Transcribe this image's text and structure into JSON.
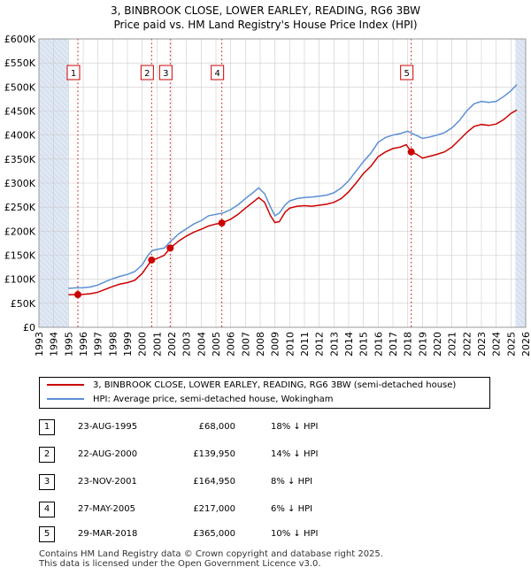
{
  "title_line1": "3, BINBROOK CLOSE, LOWER EARLEY, READING, RG6 3BW",
  "title_line2": "Price paid vs. HM Land Registry's House Price Index (HPI)",
  "colors": {
    "property": "#cc0000",
    "hpi": "#5b8fd4",
    "shade": "#dde6f3",
    "marker_line": "#cc0000"
  },
  "legend": {
    "property_label": "3, BINBROOK CLOSE, LOWER EARLEY, READING, RG6 3BW (semi-detached house)",
    "hpi_label": "HPI: Average price, semi-detached house, Wokingham"
  },
  "transactions": [
    {
      "num": "1",
      "date": "23-AUG-1995",
      "price": "£68,000",
      "hpi": "18% ↓ HPI"
    },
    {
      "num": "2",
      "date": "22-AUG-2000",
      "price": "£139,950",
      "hpi": "14% ↓ HPI"
    },
    {
      "num": "3",
      "date": "23-NOV-2001",
      "price": "£164,950",
      "hpi": "8% ↓ HPI"
    },
    {
      "num": "4",
      "date": "27-MAY-2005",
      "price": "£217,000",
      "hpi": "6% ↓ HPI"
    },
    {
      "num": "5",
      "date": "29-MAR-2018",
      "price": "£365,000",
      "hpi": "10% ↓ HPI"
    }
  ],
  "footer_line1": "Contains HM Land Registry data © Crown copyright and database right 2025.",
  "footer_line2": "This data is licensed under the Open Government Licence v3.0.",
  "chart_data": {
    "type": "line",
    "title": "3, BINBROOK CLOSE, LOWER EARLEY, READING, RG6 3BW — Price paid vs. HM Land Registry's House Price Index (HPI)",
    "xlabel": "",
    "ylabel": "",
    "xlim": [
      1993,
      2026
    ],
    "ylim": [
      0,
      600000
    ],
    "grid": true,
    "x_ticks": [
      1993,
      1994,
      1995,
      1996,
      1997,
      1998,
      1999,
      2000,
      2001,
      2002,
      2003,
      2004,
      2005,
      2006,
      2007,
      2008,
      2009,
      2010,
      2011,
      2012,
      2013,
      2014,
      2015,
      2016,
      2017,
      2018,
      2019,
      2020,
      2021,
      2022,
      2023,
      2024,
      2025,
      2026
    ],
    "y_ticks": [
      {
        "value": 0,
        "label": "£0"
      },
      {
        "value": 50000,
        "label": "£50K"
      },
      {
        "value": 100000,
        "label": "£100K"
      },
      {
        "value": 150000,
        "label": "£150K"
      },
      {
        "value": 200000,
        "label": "£200K"
      },
      {
        "value": 250000,
        "label": "£250K"
      },
      {
        "value": 300000,
        "label": "£300K"
      },
      {
        "value": 350000,
        "label": "£350K"
      },
      {
        "value": 400000,
        "label": "£400K"
      },
      {
        "value": 450000,
        "label": "£450K"
      },
      {
        "value": 500000,
        "label": "£500K"
      },
      {
        "value": 550000,
        "label": "£550K"
      },
      {
        "value": 600000,
        "label": "£600K"
      }
    ],
    "shaded_ranges": [
      [
        1993,
        1995.0
      ],
      [
        2025.3,
        2026
      ]
    ],
    "series": [
      {
        "name": "HPI: Average price, semi-detached house, Wokingham",
        "points": [
          [
            1995.0,
            81000
          ],
          [
            1995.5,
            82000
          ],
          [
            1996.0,
            82500
          ],
          [
            1996.5,
            84000
          ],
          [
            1997.0,
            88000
          ],
          [
            1997.5,
            95000
          ],
          [
            1998.0,
            101000
          ],
          [
            1998.5,
            106000
          ],
          [
            1999.0,
            110000
          ],
          [
            1999.5,
            116000
          ],
          [
            2000.0,
            130000
          ],
          [
            2000.4,
            150000
          ],
          [
            2000.7,
            160000
          ],
          [
            2001.0,
            162000
          ],
          [
            2001.5,
            165000
          ],
          [
            2001.9,
            178000
          ],
          [
            2002.5,
            195000
          ],
          [
            2003.0,
            205000
          ],
          [
            2003.5,
            215000
          ],
          [
            2004.0,
            222000
          ],
          [
            2004.5,
            232000
          ],
          [
            2005.0,
            235000
          ],
          [
            2005.5,
            238000
          ],
          [
            2006.0,
            245000
          ],
          [
            2006.5,
            255000
          ],
          [
            2007.0,
            268000
          ],
          [
            2007.5,
            280000
          ],
          [
            2007.9,
            290000
          ],
          [
            2008.3,
            278000
          ],
          [
            2008.7,
            250000
          ],
          [
            2009.0,
            232000
          ],
          [
            2009.3,
            238000
          ],
          [
            2009.7,
            255000
          ],
          [
            2010.0,
            263000
          ],
          [
            2010.5,
            268000
          ],
          [
            2011.0,
            270000
          ],
          [
            2011.5,
            271000
          ],
          [
            2012.0,
            273000
          ],
          [
            2012.5,
            275000
          ],
          [
            2013.0,
            280000
          ],
          [
            2013.5,
            290000
          ],
          [
            2014.0,
            305000
          ],
          [
            2014.5,
            325000
          ],
          [
            2015.0,
            345000
          ],
          [
            2015.5,
            362000
          ],
          [
            2016.0,
            385000
          ],
          [
            2016.5,
            395000
          ],
          [
            2017.0,
            400000
          ],
          [
            2017.5,
            403000
          ],
          [
            2018.0,
            408000
          ],
          [
            2018.3,
            403000
          ],
          [
            2018.7,
            398000
          ],
          [
            2019.0,
            393000
          ],
          [
            2019.5,
            396000
          ],
          [
            2020.0,
            400000
          ],
          [
            2020.5,
            405000
          ],
          [
            2021.0,
            415000
          ],
          [
            2021.5,
            430000
          ],
          [
            2022.0,
            450000
          ],
          [
            2022.5,
            465000
          ],
          [
            2023.0,
            470000
          ],
          [
            2023.5,
            468000
          ],
          [
            2024.0,
            470000
          ],
          [
            2024.5,
            480000
          ],
          [
            2025.0,
            492000
          ],
          [
            2025.4,
            505000
          ]
        ]
      },
      {
        "name": "3, BINBROOK CLOSE, LOWER EARLEY, READING, RG6 3BW (semi-detached house)",
        "points": [
          [
            1995.0,
            68000
          ],
          [
            1995.64,
            68000
          ],
          [
            1996.0,
            68500
          ],
          [
            1996.5,
            70000
          ],
          [
            1997.0,
            73000
          ],
          [
            1997.5,
            79000
          ],
          [
            1998.0,
            85000
          ],
          [
            1998.5,
            90000
          ],
          [
            1999.0,
            93000
          ],
          [
            1999.5,
            98000
          ],
          [
            2000.0,
            112000
          ],
          [
            2000.64,
            139950
          ],
          [
            2001.0,
            143000
          ],
          [
            2001.5,
            150000
          ],
          [
            2001.9,
            164950
          ],
          [
            2002.5,
            180000
          ],
          [
            2003.0,
            190000
          ],
          [
            2003.5,
            198000
          ],
          [
            2004.0,
            204000
          ],
          [
            2004.5,
            211000
          ],
          [
            2005.0,
            215000
          ],
          [
            2005.4,
            217000
          ],
          [
            2006.0,
            225000
          ],
          [
            2006.5,
            235000
          ],
          [
            2007.0,
            248000
          ],
          [
            2007.5,
            260000
          ],
          [
            2007.9,
            270000
          ],
          [
            2008.3,
            260000
          ],
          [
            2008.7,
            232000
          ],
          [
            2009.0,
            218000
          ],
          [
            2009.3,
            220000
          ],
          [
            2009.7,
            240000
          ],
          [
            2010.0,
            248000
          ],
          [
            2010.5,
            252000
          ],
          [
            2011.0,
            253000
          ],
          [
            2011.5,
            252000
          ],
          [
            2012.0,
            254000
          ],
          [
            2012.5,
            256000
          ],
          [
            2013.0,
            260000
          ],
          [
            2013.5,
            268000
          ],
          [
            2014.0,
            282000
          ],
          [
            2014.5,
            300000
          ],
          [
            2015.0,
            320000
          ],
          [
            2015.5,
            335000
          ],
          [
            2016.0,
            355000
          ],
          [
            2016.5,
            365000
          ],
          [
            2017.0,
            372000
          ],
          [
            2017.5,
            375000
          ],
          [
            2017.9,
            380000
          ],
          [
            2018.24,
            365000
          ],
          [
            2018.6,
            360000
          ],
          [
            2019.0,
            352000
          ],
          [
            2019.5,
            356000
          ],
          [
            2020.0,
            360000
          ],
          [
            2020.5,
            365000
          ],
          [
            2021.0,
            375000
          ],
          [
            2021.5,
            390000
          ],
          [
            2022.0,
            405000
          ],
          [
            2022.5,
            418000
          ],
          [
            2023.0,
            422000
          ],
          [
            2023.5,
            420000
          ],
          [
            2024.0,
            423000
          ],
          [
            2024.5,
            432000
          ],
          [
            2025.0,
            445000
          ],
          [
            2025.4,
            452000
          ]
        ]
      }
    ],
    "sales": [
      {
        "num": "1",
        "year": 1995.64,
        "price": 68000
      },
      {
        "num": "2",
        "year": 2000.64,
        "price": 139950
      },
      {
        "num": "3",
        "year": 2001.9,
        "price": 164950
      },
      {
        "num": "4",
        "year": 2005.4,
        "price": 217000
      },
      {
        "num": "5",
        "year": 2018.24,
        "price": 365000
      }
    ]
  }
}
